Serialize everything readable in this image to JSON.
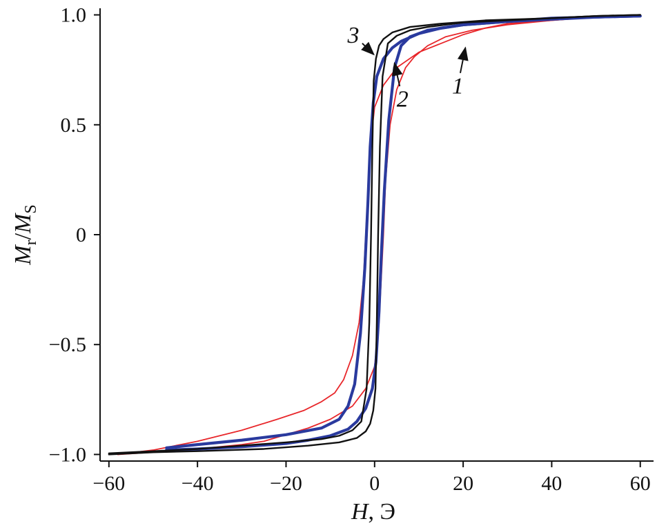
{
  "chart_data": {
    "type": "line",
    "xlabel": {
      "symbol": "H",
      "unit": ", Э"
    },
    "ylabel": {
      "M1": "M",
      "sub1": "r",
      "slash": "/",
      "M2": "M",
      "sub2": "S"
    },
    "xlim": [
      -62,
      63
    ],
    "ylim": [
      -1.03,
      1.03
    ],
    "x_ticks": [
      -60,
      -40,
      -20,
      0,
      20,
      40,
      60
    ],
    "x_tick_labels": [
      "−60",
      "−40",
      "−20",
      "0",
      "20",
      "40",
      "60"
    ],
    "y_ticks": [
      -1.0,
      -0.5,
      0,
      0.5,
      1.0
    ],
    "y_tick_labels": [
      "−1.0",
      "−0.5",
      "0",
      "0.5",
      "1.0"
    ],
    "series": [
      {
        "label": "1",
        "color": "#e8262a",
        "loop": {
          "upper": [
            [
              -58,
              -1.0
            ],
            [
              -50,
              -0.98
            ],
            [
              -40,
              -0.94
            ],
            [
              -30,
              -0.89
            ],
            [
              -22,
              -0.84
            ],
            [
              -16,
              -0.8
            ],
            [
              -12,
              -0.76
            ],
            [
              -9,
              -0.72
            ],
            [
              -7,
              -0.66
            ],
            [
              -5,
              -0.55
            ],
            [
              -3.5,
              -0.4
            ],
            [
              -2.5,
              -0.2
            ],
            [
              -2,
              0.0
            ],
            [
              -1.5,
              0.2
            ],
            [
              -1,
              0.4
            ],
            [
              0,
              0.58
            ],
            [
              2,
              0.68
            ],
            [
              5,
              0.76
            ],
            [
              10,
              0.83
            ],
            [
              15,
              0.87
            ],
            [
              20,
              0.91
            ],
            [
              25,
              0.94
            ],
            [
              30,
              0.96
            ],
            [
              40,
              0.975
            ],
            [
              50,
              0.99
            ],
            [
              60,
              1.0
            ]
          ],
          "lower": [
            [
              60,
              1.0
            ],
            [
              50,
              0.99
            ],
            [
              40,
              0.975
            ],
            [
              30,
              0.955
            ],
            [
              22,
              0.93
            ],
            [
              16,
              0.9
            ],
            [
              12,
              0.86
            ],
            [
              9,
              0.81
            ],
            [
              7,
              0.76
            ],
            [
              5,
              0.66
            ],
            [
              3.5,
              0.5
            ],
            [
              2.5,
              0.25
            ],
            [
              2,
              0.0
            ],
            [
              1.5,
              -0.2
            ],
            [
              1,
              -0.4
            ],
            [
              0,
              -0.6
            ],
            [
              -2,
              -0.7
            ],
            [
              -5,
              -0.78
            ],
            [
              -10,
              -0.84
            ],
            [
              -15,
              -0.88
            ],
            [
              -20,
              -0.91
            ],
            [
              -25,
              -0.94
            ],
            [
              -30,
              -0.955
            ],
            [
              -40,
              -0.975
            ],
            [
              -50,
              -0.99
            ],
            [
              -58,
              -1.0
            ]
          ]
        }
      },
      {
        "label": "2",
        "color": "#2a3a9e",
        "loop": {
          "upper": [
            [
              -47,
              -0.97
            ],
            [
              -40,
              -0.955
            ],
            [
              -30,
              -0.935
            ],
            [
              -20,
              -0.91
            ],
            [
              -12,
              -0.88
            ],
            [
              -8,
              -0.84
            ],
            [
              -6,
              -0.78
            ],
            [
              -4.5,
              -0.68
            ],
            [
              -3.2,
              -0.45
            ],
            [
              -2.2,
              -0.15
            ],
            [
              -1.5,
              0.15
            ],
            [
              -1,
              0.4
            ],
            [
              -0.3,
              0.6
            ],
            [
              0.5,
              0.72
            ],
            [
              2,
              0.8
            ],
            [
              4,
              0.85
            ],
            [
              6,
              0.88
            ],
            [
              10,
              0.915
            ],
            [
              15,
              0.94
            ],
            [
              20,
              0.955
            ],
            [
              30,
              0.97
            ],
            [
              40,
              0.985
            ],
            [
              50,
              0.99
            ],
            [
              60,
              0.995
            ]
          ],
          "lower": [
            [
              60,
              0.995
            ],
            [
              50,
              0.99
            ],
            [
              40,
              0.98
            ],
            [
              30,
              0.97
            ],
            [
              20,
              0.955
            ],
            [
              12,
              0.93
            ],
            [
              8,
              0.9
            ],
            [
              6,
              0.86
            ],
            [
              4.5,
              0.76
            ],
            [
              3.2,
              0.52
            ],
            [
              2.2,
              0.2
            ],
            [
              1.5,
              -0.1
            ],
            [
              1,
              -0.35
            ],
            [
              0.3,
              -0.58
            ],
            [
              -0.5,
              -0.7
            ],
            [
              -2,
              -0.79
            ],
            [
              -4,
              -0.85
            ],
            [
              -6,
              -0.885
            ],
            [
              -10,
              -0.915
            ],
            [
              -15,
              -0.935
            ],
            [
              -20,
              -0.95
            ],
            [
              -30,
              -0.965
            ],
            [
              -40,
              -0.975
            ],
            [
              -47,
              -0.98
            ]
          ]
        }
      },
      {
        "label": "3",
        "color": "#111111",
        "loop": {
          "upper": [
            [
              -60,
              -0.995
            ],
            [
              -50,
              -0.985
            ],
            [
              -40,
              -0.975
            ],
            [
              -30,
              -0.96
            ],
            [
              -20,
              -0.945
            ],
            [
              -12,
              -0.93
            ],
            [
              -8,
              -0.915
            ],
            [
              -5,
              -0.89
            ],
            [
              -3,
              -0.85
            ],
            [
              -1.8,
              -0.7
            ],
            [
              -1.2,
              -0.4
            ],
            [
              -0.8,
              0.0
            ],
            [
              -0.5,
              0.4
            ],
            [
              -0.2,
              0.7
            ],
            [
              0.3,
              0.8
            ],
            [
              1,
              0.86
            ],
            [
              2,
              0.89
            ],
            [
              4,
              0.92
            ],
            [
              8,
              0.945
            ],
            [
              15,
              0.96
            ],
            [
              25,
              0.975
            ],
            [
              40,
              0.985
            ],
            [
              50,
              0.995
            ],
            [
              60,
              1.0
            ]
          ],
          "lower": [
            [
              60,
              1.0
            ],
            [
              50,
              0.995
            ],
            [
              40,
              0.985
            ],
            [
              30,
              0.975
            ],
            [
              20,
              0.965
            ],
            [
              12,
              0.945
            ],
            [
              8,
              0.93
            ],
            [
              5,
              0.905
            ],
            [
              3,
              0.87
            ],
            [
              1.8,
              0.72
            ],
            [
              1.2,
              0.4
            ],
            [
              0.8,
              0.0
            ],
            [
              0.5,
              -0.4
            ],
            [
              0.2,
              -0.7
            ],
            [
              -0.3,
              -0.8
            ],
            [
              -1,
              -0.86
            ],
            [
              -2,
              -0.895
            ],
            [
              -4,
              -0.925
            ],
            [
              -8,
              -0.945
            ],
            [
              -15,
              -0.96
            ],
            [
              -25,
              -0.975
            ],
            [
              -40,
              -0.985
            ],
            [
              -50,
              -0.99
            ],
            [
              -60,
              -1.0
            ]
          ]
        }
      }
    ],
    "callouts": [
      {
        "text": "3",
        "label_at": [
          -4.8,
          0.91
        ],
        "arrow_to": [
          -0.2,
          0.82
        ]
      },
      {
        "text": "2",
        "label_at": [
          6.3,
          0.62
        ],
        "arrow_to": [
          4.5,
          0.78
        ]
      },
      {
        "text": "1",
        "label_at": [
          18.8,
          0.68
        ],
        "arrow_to": [
          20.5,
          0.85
        ]
      }
    ]
  }
}
